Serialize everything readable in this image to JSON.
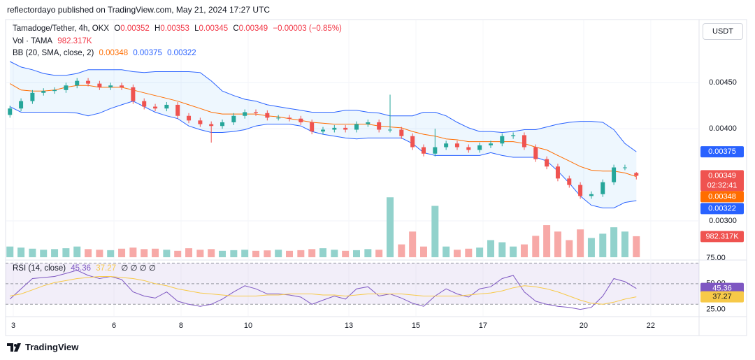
{
  "header": {
    "byline": "reflectordayo published on TradingView.com, May 21, 2024 17:27 UTC",
    "currency": "USDT",
    "brand": "TradingView"
  },
  "chart_data": {
    "type": "candlestick",
    "symbol": "Tamadoge/Tether, 4h, OKX",
    "ohlc_labels": [
      "O",
      "H",
      "L",
      "C"
    ],
    "change": "−0.00003 (−0.85%)",
    "countdown": "02:32:41",
    "up_color": "#26a69a",
    "down_color": "#ef5350",
    "x": [
      2.9,
      3.23,
      3.57,
      3.9,
      4.23,
      4.57,
      4.9,
      5.23,
      5.57,
      5.9,
      6.23,
      6.57,
      6.9,
      7.23,
      7.57,
      7.9,
      8.23,
      8.57,
      8.9,
      9.23,
      9.57,
      9.9,
      10.23,
      10.57,
      10.9,
      11.23,
      11.57,
      11.9,
      12.23,
      12.57,
      12.9,
      13.23,
      13.57,
      13.9,
      14.23,
      14.57,
      14.9,
      15.23,
      15.57,
      15.9,
      16.23,
      16.57,
      16.9,
      17.23,
      17.57,
      17.9,
      18.23,
      18.57,
      18.9,
      19.23,
      19.57,
      19.9,
      20.23,
      20.57,
      20.9,
      21.23,
      21.57
    ],
    "open": [
      0.00415,
      0.00422,
      0.0043,
      0.00439,
      0.00441,
      0.00442,
      0.00447,
      0.00452,
      0.00449,
      0.00445,
      0.00447,
      0.00445,
      0.0043,
      0.00424,
      0.00422,
      0.00426,
      0.00414,
      0.00409,
      0.00405,
      0.00403,
      0.00407,
      0.00414,
      0.00418,
      0.00417,
      0.00412,
      0.00412,
      0.00411,
      0.00407,
      0.00397,
      0.00399,
      0.00401,
      0.00399,
      0.00405,
      0.00407,
      0.00399,
      0.00399,
      0.00392,
      0.0038,
      0.00373,
      0.0038,
      0.00384,
      0.0038,
      0.00377,
      0.00382,
      0.00384,
      0.00392,
      0.00393,
      0.0038,
      0.00367,
      0.00359,
      0.00346,
      0.00339,
      0.00327,
      0.00329,
      0.00342,
      0.00358,
      0.00352
    ],
    "high": [
      0.00425,
      0.00433,
      0.00442,
      0.00444,
      0.00445,
      0.0045,
      0.00455,
      0.00455,
      0.00452,
      0.0045,
      0.0045,
      0.00448,
      0.00433,
      0.00427,
      0.00429,
      0.00429,
      0.00417,
      0.00412,
      0.00408,
      0.0041,
      0.00417,
      0.00421,
      0.00421,
      0.0042,
      0.00415,
      0.00415,
      0.00414,
      0.0041,
      0.00402,
      0.00404,
      0.00404,
      0.00408,
      0.0041,
      0.0041,
      0.00437,
      0.00402,
      0.00395,
      0.00383,
      0.004,
      0.00387,
      0.00387,
      0.00383,
      0.00385,
      0.00387,
      0.00395,
      0.00396,
      0.00396,
      0.00383,
      0.0037,
      0.00362,
      0.00349,
      0.00342,
      0.00332,
      0.00345,
      0.00361,
      0.00361,
      0.00353
    ],
    "low": [
      0.00412,
      0.00419,
      0.00427,
      0.00436,
      0.00438,
      0.00439,
      0.00444,
      0.00446,
      0.00442,
      0.00442,
      0.00442,
      0.00427,
      0.00421,
      0.00419,
      0.00419,
      0.00411,
      0.00406,
      0.00402,
      0.00385,
      0.004,
      0.00404,
      0.00411,
      0.00414,
      0.00409,
      0.00409,
      0.00408,
      0.00404,
      0.00394,
      0.00394,
      0.00396,
      0.00396,
      0.00396,
      0.00402,
      0.00396,
      0.00396,
      0.00389,
      0.00377,
      0.0037,
      0.0037,
      0.00377,
      0.00377,
      0.00374,
      0.00374,
      0.00379,
      0.00381,
      0.00389,
      0.00377,
      0.00364,
      0.00356,
      0.00343,
      0.00336,
      0.00324,
      0.00324,
      0.00326,
      0.00339,
      0.00355,
      0.00345
    ],
    "close": [
      0.00422,
      0.0043,
      0.00439,
      0.00441,
      0.00442,
      0.00447,
      0.00452,
      0.00449,
      0.00445,
      0.00447,
      0.00445,
      0.0043,
      0.00424,
      0.00422,
      0.00426,
      0.00414,
      0.00409,
      0.00405,
      0.00403,
      0.00407,
      0.00414,
      0.00418,
      0.00417,
      0.00412,
      0.00412,
      0.00411,
      0.00407,
      0.00397,
      0.00399,
      0.00401,
      0.00399,
      0.00405,
      0.00407,
      0.00399,
      0.00399,
      0.00392,
      0.0038,
      0.00373,
      0.0038,
      0.00384,
      0.0038,
      0.00377,
      0.00382,
      0.00384,
      0.00392,
      0.00393,
      0.0038,
      0.00367,
      0.00359,
      0.00346,
      0.00339,
      0.00327,
      0.00329,
      0.00342,
      0.00358,
      0.00358,
      0.00349
    ],
    "ylim": [
      0.00259,
      0.00517
    ],
    "yticks": [
      {
        "value": 0.0045,
        "label": "0.00450"
      },
      {
        "value": 0.004,
        "label": "0.00400"
      },
      {
        "value": 0.003,
        "label": "0.00300"
      }
    ],
    "grid": true,
    "xlim": [
      2.77,
      23.44
    ],
    "xticks": [
      3,
      6,
      8,
      10,
      13,
      15,
      17,
      20,
      22
    ],
    "volume": {
      "name": "Vol · TAMA",
      "ylim": [
        0,
        3200000
      ],
      "up_color": "#92d2cc",
      "down_color": "#f7a9a7",
      "values": [
        500000,
        450000,
        400000,
        350000,
        380000,
        420000,
        500000,
        380000,
        350000,
        330000,
        400000,
        450000,
        380000,
        400000,
        350000,
        300000,
        420000,
        350000,
        380000,
        300000,
        330000,
        350000,
        300000,
        320000,
        350000,
        300000,
        330000,
        380000,
        420000,
        350000,
        300000,
        330000,
        380000,
        350000,
        2800000,
        600000,
        1200000,
        500000,
        2400000,
        500000,
        350000,
        400000,
        450000,
        800000,
        700000,
        500000,
        600000,
        1000000,
        1500000,
        1200000,
        800000,
        1300000,
        900000,
        1100000,
        1400000,
        1200000,
        982317
      ],
      "value_labels": {
        "56": "982.317K"
      }
    },
    "bb": {
      "name": "BB (20, SMA, close, 2)",
      "fill": "rgba(33,150,243,0.08)",
      "series": [
        {
          "color": "#2962ff",
          "values": [
            0.00473,
            0.00467,
            0.00464,
            0.0046,
            0.00458,
            0.00458,
            0.0046,
            0.00464,
            0.00464,
            0.00464,
            0.00464,
            0.00462,
            0.00461,
            0.00462,
            0.00462,
            0.00462,
            0.00462,
            0.00461,
            0.00452,
            0.00441,
            0.00436,
            0.00432,
            0.0043,
            0.00426,
            0.00424,
            0.00422,
            0.0042,
            0.00418,
            0.00418,
            0.00418,
            0.0042,
            0.0042,
            0.00418,
            0.00417,
            0.00414,
            0.00414,
            0.00414,
            0.00418,
            0.00418,
            0.00414,
            0.00407,
            0.00401,
            0.00397,
            0.00397,
            0.00396,
            0.00397,
            0.00399,
            0.00399,
            0.00402,
            0.00405,
            0.00407,
            0.00408,
            0.00408,
            0.00407,
            0.00399,
            0.00384,
            0.00375
          ]
        },
        {
          "color": "#ff6d00",
          "values": [
            0.00449,
            0.00442,
            0.00441,
            0.00441,
            0.00442,
            0.00445,
            0.00447,
            0.00447,
            0.00445,
            0.00445,
            0.00445,
            0.00442,
            0.00439,
            0.00436,
            0.00433,
            0.0043,
            0.00426,
            0.00422,
            0.00418,
            0.00416,
            0.00416,
            0.00416,
            0.00416,
            0.00414,
            0.00413,
            0.00411,
            0.00409,
            0.00407,
            0.00406,
            0.00405,
            0.00405,
            0.00405,
            0.00405,
            0.00403,
            0.00402,
            0.00401,
            0.00397,
            0.00394,
            0.00392,
            0.00389,
            0.00388,
            0.00386,
            0.00386,
            0.00386,
            0.00386,
            0.00386,
            0.00384,
            0.0038,
            0.00377,
            0.00371,
            0.00365,
            0.00359,
            0.00355,
            0.00354,
            0.00354,
            0.00352,
            0.00348
          ]
        },
        {
          "color": "#2962ff",
          "values": [
            0.00424,
            0.00418,
            0.00418,
            0.00418,
            0.00418,
            0.00418,
            0.00417,
            0.00414,
            0.00417,
            0.00422,
            0.00426,
            0.0043,
            0.00424,
            0.00418,
            0.00414,
            0.00411,
            0.00403,
            0.00399,
            0.00396,
            0.00396,
            0.00397,
            0.00399,
            0.00403,
            0.00405,
            0.00405,
            0.00405,
            0.00403,
            0.00397,
            0.00394,
            0.00392,
            0.0039,
            0.00389,
            0.0039,
            0.0039,
            0.0039,
            0.0039,
            0.00384,
            0.00374,
            0.00371,
            0.00371,
            0.00371,
            0.00371,
            0.00371,
            0.00374,
            0.00371,
            0.00369,
            0.00369,
            0.00369,
            0.00365,
            0.00354,
            0.00341,
            0.00327,
            0.00317,
            0.00314,
            0.00314,
            0.0032,
            0.00322
          ]
        }
      ]
    },
    "rsi": {
      "name": "RSI (14, close)",
      "icons": "∅ ∅ ∅ ∅",
      "ylim": [
        20,
        75
      ],
      "band": [
        30,
        70
      ],
      "band_color": "rgba(126,87,194,0.1)",
      "yticks": [
        {
          "value": 75,
          "label": "75.00"
        },
        {
          "value": 50,
          "label": "50.00"
        },
        {
          "value": 25,
          "label": "25.00"
        }
      ],
      "series": [
        {
          "color": "#7e57c2",
          "values": [
            35,
            45,
            55,
            56,
            57,
            60,
            63,
            58,
            55,
            57,
            54,
            42,
            38,
            36,
            42,
            33,
            30,
            28,
            30,
            35,
            42,
            48,
            45,
            40,
            40,
            39,
            37,
            30,
            34,
            38,
            35,
            45,
            47,
            38,
            40,
            36,
            31,
            28,
            38,
            45,
            40,
            37,
            45,
            47,
            55,
            58,
            42,
            33,
            30,
            28,
            27,
            25,
            27,
            38,
            55,
            52,
            45.36
          ]
        },
        {
          "color": "#f7c948",
          "values": [
            38,
            40,
            44,
            48,
            51,
            53,
            55,
            56,
            57,
            57,
            56,
            55,
            53,
            50,
            48,
            45,
            43,
            41,
            40,
            39,
            38,
            38,
            38,
            39,
            39,
            40,
            40,
            40,
            39,
            39,
            38,
            39,
            40,
            40,
            40,
            40,
            39,
            38,
            38,
            38,
            38,
            39,
            40,
            41,
            43,
            46,
            48,
            47,
            45,
            42,
            38,
            34,
            31,
            30,
            32,
            35,
            37.27
          ]
        }
      ]
    }
  }
}
